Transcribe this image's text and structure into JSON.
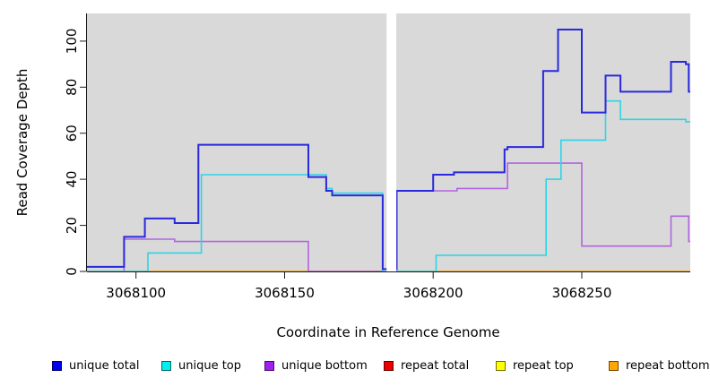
{
  "figure": {
    "background": "#ffffff",
    "plot_background": "#d9d9d9",
    "axis_color": "#1a1a1a",
    "gap_color": "#ffffff"
  },
  "chart_data": {
    "type": "line",
    "subtype": "step-coverage",
    "title": "",
    "xlabel": "Coordinate in Reference Genome",
    "ylabel": "Read Coverage Depth",
    "xlim": [
      3068083.5,
      3068286.5
    ],
    "ylim": [
      0,
      112
    ],
    "grid": false,
    "legend_position": "bottom",
    "x_ticks": [
      {
        "value": 3068100,
        "label": "3068100"
      },
      {
        "value": 3068150,
        "label": "3068150"
      },
      {
        "value": 3068200,
        "label": "3068200"
      },
      {
        "value": 3068250,
        "label": "3068250"
      }
    ],
    "y_ticks": [
      {
        "value": 0,
        "label": "0"
      },
      {
        "value": 20,
        "label": "20"
      },
      {
        "value": 40,
        "label": "40"
      },
      {
        "value": 60,
        "label": "60"
      },
      {
        "value": 80,
        "label": "80"
      },
      {
        "value": 100,
        "label": "100"
      }
    ],
    "gap_band": {
      "from": 3068184.3,
      "to": 3068187.6
    },
    "series": [
      {
        "label": "unique total",
        "color": "#0000ee",
        "line_color": "#2929dd",
        "line_width": 2,
        "points": [
          [
            3068083.5,
            2
          ],
          [
            3068096,
            15
          ],
          [
            3068103,
            23
          ],
          [
            3068113,
            21
          ],
          [
            3068121,
            55
          ],
          [
            3068158,
            41
          ],
          [
            3068164,
            35
          ],
          [
            3068166,
            33
          ],
          [
            3068183,
            1
          ],
          [
            3068187.7,
            35
          ],
          [
            3068200,
            42
          ],
          [
            3068207,
            43
          ],
          [
            3068224,
            53
          ],
          [
            3068225,
            54
          ],
          [
            3068237,
            87
          ],
          [
            3068242,
            105
          ],
          [
            3068250,
            69
          ],
          [
            3068258,
            85
          ],
          [
            3068263,
            78
          ],
          [
            3068280,
            91
          ],
          [
            3068285,
            90
          ],
          [
            3068286,
            78
          ]
        ]
      },
      {
        "label": "unique top",
        "color": "#00eeee",
        "line_color": "#2cd4e6",
        "line_width": 1.6,
        "points": [
          [
            3068083.5,
            0
          ],
          [
            3068104,
            8
          ],
          [
            3068122,
            42
          ],
          [
            3068164,
            36
          ],
          [
            3068166,
            34
          ],
          [
            3068183,
            0
          ],
          [
            3068201,
            7
          ],
          [
            3068238,
            40
          ],
          [
            3068243,
            57
          ],
          [
            3068258,
            74
          ],
          [
            3068263,
            66
          ],
          [
            3068285,
            65
          ]
        ]
      },
      {
        "label": "unique bottom",
        "color": "#a020f0",
        "line_color": "#b165e0",
        "line_width": 1.6,
        "points": [
          [
            3068083.5,
            0
          ],
          [
            3068096,
            14
          ],
          [
            3068113,
            13
          ],
          [
            3068158,
            0
          ],
          [
            3068187.7,
            35
          ],
          [
            3068208,
            36
          ],
          [
            3068225,
            47
          ],
          [
            3068250,
            11
          ],
          [
            3068280,
            24
          ],
          [
            3068286,
            13
          ]
        ]
      },
      {
        "label": "repeat total",
        "color": "#ee0000",
        "line_color": "#dd3344",
        "line_width": 1.6,
        "points": [
          [
            3068083.5,
            0
          ]
        ]
      },
      {
        "label": "repeat top",
        "color": "#ffff00",
        "line_color": "#eeee00",
        "line_width": 1.6,
        "points": [
          [
            3068083.5,
            0
          ]
        ]
      },
      {
        "label": "repeat bottom",
        "color": "#ffa500",
        "line_color": "#ffa51e",
        "line_width": 1.6,
        "points": [
          [
            3068083.5,
            0
          ]
        ]
      }
    ]
  }
}
